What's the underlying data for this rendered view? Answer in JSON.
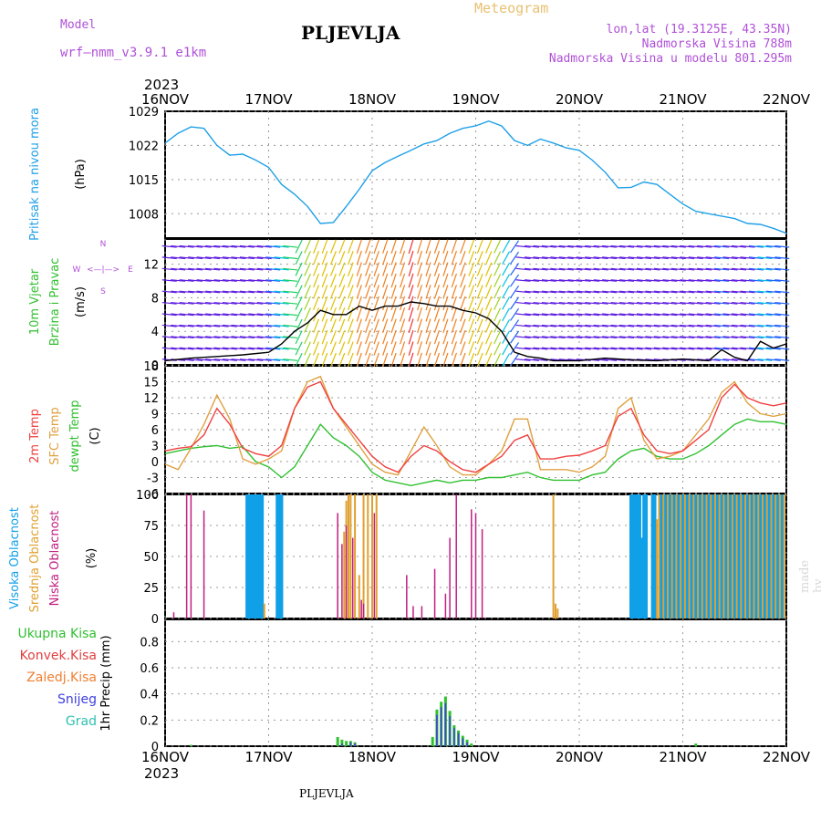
{
  "header": {
    "model_label": "Model",
    "model_name": "wrf—nmm_v3.9.1 e1km",
    "station": "PLJEVLJA",
    "product": "Meteogram",
    "lonlat": "lon,lat (19.3125E, 43.35N)",
    "elevation": "Nadmorska Visina 788m",
    "model_elevation": "Nadmorska Visina u modelu 801.295m",
    "made_by": "made by Angel",
    "footer_station": "PLJEVLJA",
    "year_top": "2023",
    "year_bottom": "2023"
  },
  "colors": {
    "pressure": "#1ea0e8",
    "temp2m": "#f04040",
    "sfc_temp": "#e0a040",
    "dewpoint": "#30c030",
    "high_cloud": "#10a0e8",
    "mid_cloud": "#e0a030",
    "low_cloud": "#c02080",
    "total_precip": "#30c030",
    "conv_precip": "#e04040",
    "snow": "#4040e0",
    "grid": "#999999"
  },
  "date_ticks": [
    "16NOV",
    "17NOV",
    "18NOV",
    "19NOV",
    "20NOV",
    "21NOV",
    "22NOV"
  ],
  "labels": {
    "pressure": [
      "Pritisak na nivou mora",
      "(hPa)"
    ],
    "wind": [
      "10m Vjetar",
      "Brzina i Pravac",
      "(m/s)"
    ],
    "wind_compass": [
      "W",
      "<—|—>",
      "E",
      "S",
      "N"
    ],
    "temp": [
      "2m Temp",
      "SFC Temp",
      "dewpt Temp",
      "(C)"
    ],
    "cloud": [
      "Visoka Oblacnost",
      "Srednja Oblacnost",
      "Niska Oblacnost",
      "(%)"
    ],
    "precip_legend": [
      "Ukupna Kisa",
      "Konvek.Kisa",
      "Zaledj.Kisa",
      "Snijeg",
      "Grad"
    ],
    "precip_axis": "1hr Precip (mm)"
  },
  "chart_data": [
    {
      "type": "line",
      "panel": "pressure",
      "ylabel": "Pritisak na nivou mora (hPa)",
      "ylim": [
        1003,
        1029
      ],
      "yticks": [
        1008,
        1015,
        1022,
        1029
      ],
      "xlim": [
        0,
        144
      ],
      "x_unit": "hours since 16NOV 00UTC",
      "series": [
        {
          "name": "Pritisak na nivou mora",
          "x": [
            0,
            3,
            6,
            9,
            12,
            15,
            18,
            21,
            24,
            27,
            30,
            33,
            36,
            39,
            42,
            45,
            48,
            51,
            54,
            57,
            60,
            63,
            66,
            69,
            72,
            75,
            78,
            81,
            84,
            87,
            90,
            93,
            96,
            99,
            102,
            105,
            108,
            111,
            114,
            117,
            120,
            123,
            126,
            129,
            132,
            135,
            138,
            141,
            144
          ],
          "values": [
            1022.5,
            1024.5,
            1025.8,
            1025.5,
            1022,
            1020,
            1020.2,
            1019,
            1017.5,
            1014,
            1012,
            1009.5,
            1006,
            1006.2,
            1009.5,
            1013,
            1016.8,
            1018.5,
            1019.8,
            1021,
            1022.3,
            1023,
            1024.5,
            1025.5,
            1026,
            1027,
            1026,
            1023,
            1022,
            1023.3,
            1022.5,
            1021.5,
            1021,
            1019,
            1016.5,
            1013.3,
            1013.4,
            1014.5,
            1014,
            1012,
            1010,
            1008.5,
            1008,
            1007.5,
            1007,
            1006,
            1005.8,
            1005,
            1004
          ]
        }
      ]
    },
    {
      "type": "line",
      "panel": "wind",
      "ylabel": "10m Vjetar Brzina i Pravac (m/s)",
      "ylim": [
        0,
        15
      ],
      "yticks": [
        0,
        4,
        8,
        12
      ],
      "xlim": [
        0,
        144
      ],
      "series": [
        {
          "name": "10m Vjetar",
          "x": [
            0,
            6,
            12,
            18,
            24,
            27,
            30,
            33,
            36,
            39,
            42,
            45,
            48,
            51,
            54,
            57,
            60,
            63,
            66,
            69,
            72,
            75,
            78,
            81,
            84,
            87,
            90,
            96,
            102,
            108,
            114,
            120,
            126,
            129,
            132,
            135,
            138,
            141,
            144
          ],
          "values": [
            0.5,
            0.8,
            1,
            1.2,
            1.5,
            2.5,
            4,
            5,
            6.5,
            6,
            6,
            7,
            6.5,
            7,
            7,
            7.5,
            7.3,
            7,
            7,
            6.5,
            6.2,
            5.5,
            4,
            1.5,
            1,
            0.8,
            0.5,
            0.5,
            0.8,
            0.6,
            0.5,
            0.7,
            0.5,
            1.8,
            0.9,
            0.5,
            2.8,
            2,
            2.5
          ]
        }
      ]
    },
    {
      "type": "line",
      "panel": "temperature",
      "ylabel": "(C)",
      "ylim": [
        -6,
        18
      ],
      "yticks": [
        -6,
        -3,
        0,
        3,
        6,
        9,
        12,
        15,
        18
      ],
      "xlim": [
        0,
        144
      ],
      "series": [
        {
          "name": "2m Temp",
          "x": [
            0,
            3,
            6,
            9,
            12,
            15,
            18,
            21,
            24,
            27,
            30,
            33,
            36,
            39,
            42,
            45,
            48,
            51,
            54,
            57,
            60,
            63,
            66,
            69,
            72,
            75,
            78,
            81,
            84,
            87,
            90,
            93,
            96,
            99,
            102,
            105,
            108,
            111,
            114,
            117,
            120,
            123,
            126,
            129,
            132,
            135,
            138,
            141,
            144
          ],
          "values": [
            2,
            2.5,
            2.8,
            5,
            10,
            7,
            2.5,
            1.5,
            1,
            3,
            10,
            14,
            15,
            10,
            7,
            4,
            1,
            -1,
            -2,
            1,
            3,
            2,
            0,
            -1.5,
            -2,
            -0.5,
            1,
            4,
            5,
            0.5,
            0.5,
            1,
            1.2,
            2,
            3,
            8.5,
            10,
            5,
            2,
            1.5,
            2,
            4,
            6,
            12,
            14.5,
            12,
            11,
            10.5,
            11
          ]
        },
        {
          "name": "SFC Temp",
          "x": [
            0,
            3,
            6,
            9,
            12,
            15,
            18,
            21,
            24,
            27,
            30,
            33,
            36,
            39,
            42,
            45,
            48,
            51,
            54,
            57,
            60,
            63,
            66,
            69,
            72,
            75,
            78,
            81,
            84,
            87,
            90,
            93,
            96,
            99,
            102,
            105,
            108,
            111,
            114,
            117,
            120,
            123,
            126,
            129,
            132,
            135,
            138,
            141,
            144
          ],
          "values": [
            -0.5,
            -1.5,
            2.5,
            7,
            12.5,
            8,
            0.5,
            -0.5,
            0.5,
            2,
            10,
            15,
            16,
            10,
            6.5,
            3,
            -0.5,
            -2,
            -2.5,
            2,
            6.5,
            3,
            -1,
            -2.5,
            -2.5,
            -0.5,
            2,
            8,
            8,
            -1.5,
            -1.5,
            -1.5,
            -2,
            -1,
            1,
            10,
            12,
            4,
            0.5,
            1,
            2,
            5,
            8,
            13,
            15,
            11,
            9,
            8.5,
            9
          ]
        },
        {
          "name": "dewpt Temp",
          "x": [
            0,
            3,
            6,
            9,
            12,
            15,
            18,
            21,
            24,
            27,
            30,
            33,
            36,
            39,
            42,
            45,
            48,
            51,
            54,
            57,
            60,
            63,
            66,
            69,
            72,
            75,
            78,
            81,
            84,
            87,
            90,
            93,
            96,
            99,
            102,
            105,
            108,
            111,
            114,
            117,
            120,
            123,
            126,
            129,
            132,
            135,
            138,
            141,
            144
          ],
          "values": [
            1.5,
            2,
            2.5,
            2.8,
            3,
            2.5,
            2.8,
            0,
            -1,
            -3,
            -1,
            3,
            7,
            4.5,
            3,
            1,
            -2,
            -3.5,
            -4,
            -4.5,
            -4,
            -3.5,
            -4,
            -3.5,
            -3.5,
            -3,
            -3,
            -2.5,
            -2,
            -3,
            -3.5,
            -3.5,
            -3.5,
            -2.5,
            -2,
            0.5,
            2,
            2.5,
            1,
            0.5,
            0.5,
            1.5,
            3,
            5,
            7,
            8,
            7.5,
            7.5,
            7
          ]
        }
      ]
    },
    {
      "type": "bar",
      "panel": "cloud",
      "ylabel": "(%)",
      "ylim": [
        0,
        100
      ],
      "yticks": [
        0,
        25,
        50,
        75,
        100
      ],
      "xlim": [
        0,
        144
      ],
      "series": [
        {
          "name": "Visoka Oblacnost",
          "x": [
            19,
            19.5,
            20,
            20.5,
            21,
            21.5,
            22,
            22.5,
            26,
            26.5,
            27,
            108,
            108.5,
            109,
            109.5,
            110,
            110.5,
            111,
            111.5,
            113,
            113.5,
            115,
            116,
            117,
            118,
            119,
            120,
            121,
            122,
            123,
            124,
            125,
            126,
            127,
            128,
            129,
            130,
            131,
            132,
            133,
            134,
            135,
            136,
            137,
            138,
            139,
            140,
            141,
            142,
            143
          ],
          "values": [
            100,
            100,
            100,
            100,
            100,
            100,
            100,
            100,
            100,
            100,
            100,
            100,
            100,
            100,
            100,
            100,
            65,
            100,
            100,
            100,
            100,
            100,
            100,
            100,
            100,
            100,
            100,
            100,
            100,
            100,
            100,
            100,
            100,
            100,
            100,
            100,
            100,
            100,
            100,
            100,
            100,
            100,
            100,
            100,
            100,
            100,
            100,
            100,
            100,
            100
          ]
        },
        {
          "name": "Srednja Oblacnost",
          "x": [
            23,
            41.5,
            42,
            42.5,
            43,
            44,
            45,
            46,
            47,
            48,
            49,
            90,
            90.5,
            91,
            114,
            114.5,
            115.5,
            116.5,
            117.5,
            118.5,
            119.5,
            120.5,
            121.5,
            122.5,
            123.5,
            124.5,
            125.5,
            126.5,
            127.5,
            128.5,
            129.5,
            130.5,
            131.5,
            132.5,
            133.5,
            134.5,
            135.5,
            136.5,
            137.5,
            138.5,
            139.5,
            140.5,
            141.5,
            142.5,
            143.5
          ],
          "values": [
            12,
            70,
            95,
            100,
            100,
            100,
            35,
            100,
            100,
            100,
            100,
            100,
            12,
            8,
            80,
            100,
            100,
            100,
            100,
            100,
            100,
            100,
            100,
            100,
            100,
            100,
            100,
            100,
            100,
            100,
            100,
            100,
            100,
            100,
            100,
            100,
            100,
            100,
            100,
            100,
            100,
            100,
            100,
            100,
            100
          ]
        },
        {
          "name": "Niska Oblacnost",
          "x": [
            2,
            5,
            6,
            9,
            40,
            41,
            42,
            43.5,
            45.5,
            46,
            48.5,
            56,
            57.5,
            59.5,
            62.5,
            65,
            66,
            67.5,
            71,
            72,
            73.5
          ],
          "values": [
            5,
            100,
            100,
            87,
            85,
            60,
            75,
            65,
            15,
            12,
            85,
            35,
            10,
            10,
            40,
            20,
            65,
            100,
            88,
            85,
            72
          ]
        }
      ]
    },
    {
      "type": "bar",
      "panel": "precipitation",
      "ylabel": "1hr Precip (mm)",
      "ylim": [
        0,
        0.97
      ],
      "yticks": [
        0,
        0.2,
        0.4,
        0.6,
        0.8
      ],
      "xlim": [
        0,
        144
      ],
      "series": [
        {
          "name": "Ukupna Kisa",
          "x": [
            6,
            40,
            41,
            42,
            43,
            44,
            62,
            63,
            64,
            65,
            66,
            67,
            68,
            69,
            70,
            71,
            123
          ],
          "values": [
            0.01,
            0.07,
            0.05,
            0.04,
            0.04,
            0.03,
            0.07,
            0.28,
            0.34,
            0.38,
            0.27,
            0.16,
            0.12,
            0.08,
            0.05,
            0.02,
            0.02
          ]
        },
        {
          "name": "Snijeg",
          "x": [
            41,
            43,
            44,
            63,
            64,
            65,
            66,
            67,
            68,
            69,
            70
          ],
          "values": [
            0.02,
            0.03,
            0.02,
            0.24,
            0.3,
            0.33,
            0.23,
            0.14,
            0.1,
            0.06,
            0.03
          ]
        },
        {
          "name": "Konvek.Kisa",
          "x": [],
          "values": []
        }
      ]
    }
  ]
}
